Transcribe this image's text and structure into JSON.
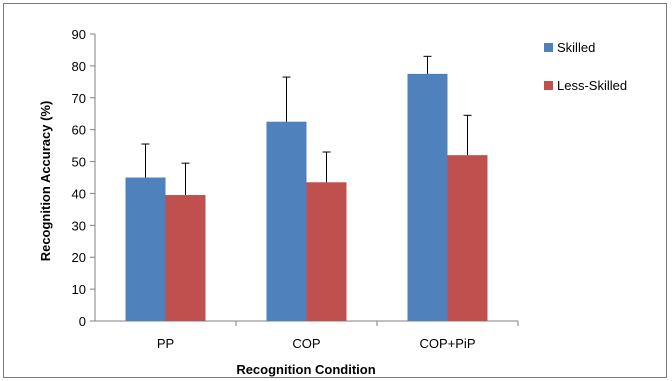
{
  "chart_data": {
    "type": "bar",
    "title": "",
    "xlabel": "Recognition Condition",
    "ylabel": "Recognition Accuracy (%)",
    "categories": [
      "PP",
      "COP",
      "COP+PiP"
    ],
    "ylim": [
      0,
      90
    ],
    "yticks": [
      0,
      10,
      20,
      30,
      40,
      50,
      60,
      70,
      80,
      90
    ],
    "grid": false,
    "legend_position": "right",
    "series": [
      {
        "name": "Skilled",
        "color": "#4f81bd",
        "values": [
          45,
          62.5,
          77.5
        ],
        "error_upper": [
          55.5,
          76.5,
          83
        ]
      },
      {
        "name": "Less-Skilled",
        "color": "#c0504d",
        "values": [
          39.5,
          43.5,
          52
        ],
        "error_upper": [
          49.5,
          53,
          64.5
        ]
      }
    ]
  }
}
